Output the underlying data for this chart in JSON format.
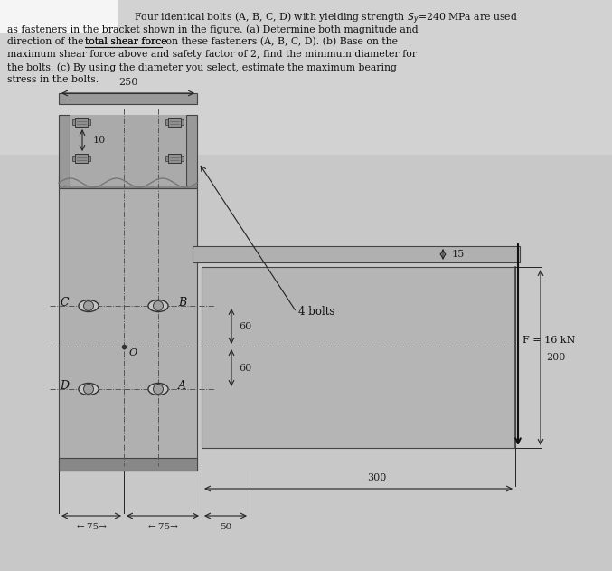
{
  "bg_color": "#c8c8c8",
  "text_bg": "#d2d2d2",
  "white_patch": "#f5f5f5",
  "dim_color": "#222222",
  "bracket_fill": "#b0b0b0",
  "bracket_edge": "#444444",
  "plate_fill": "#b8b8b8",
  "dark_fill": "#888888",
  "bolt_fill": "#c0c0c0",
  "bolt_edge": "#333333",
  "title_line1": "    Four identical bolts (A, B, C, D) with yielding strength Sy=240 MPa are used",
  "title_line2": "as fasteners in the bracket shown in the figure. (a) Determine both magnitude and",
  "title_line3": "direction of the total shear force on these fasteners (A, B, C, D). (b) Base on the",
  "title_line4": "maximum shear force above and safety factor of 2, find the minimum diameter for",
  "title_line5": "the bolts. (c) By using the diameter you select, estimate the maximum bearing",
  "title_line6": "stress in the bolts.",
  "underline_word": "total shear force",
  "fig_width": 6.77,
  "fig_height": 6.31
}
